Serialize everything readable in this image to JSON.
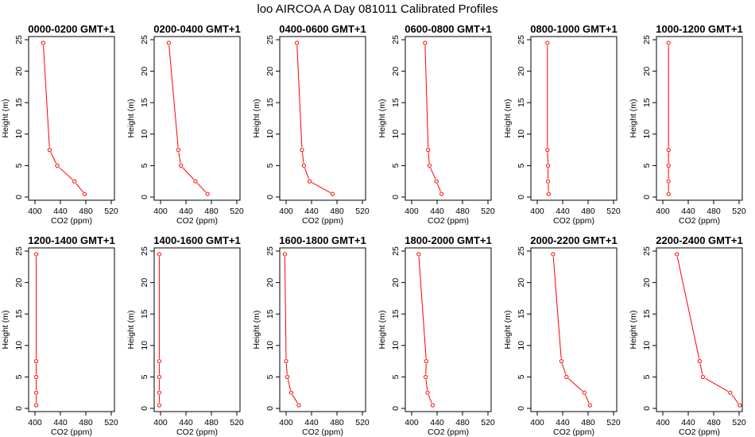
{
  "figure": {
    "title": "loo AIRCOA A  Day 081011  Calibrated Profiles",
    "colors": {
      "line": "#ff0000",
      "points": "#ff0000",
      "axis": "#000000"
    }
  },
  "chart_data": [
    {
      "type": "line",
      "title": "0000-0200 GMT+1",
      "xlabel": "CO2 (ppm)",
      "ylabel": "Height (m)",
      "xlim": [
        390,
        525
      ],
      "ylim": [
        0,
        25
      ],
      "xticks": [
        400,
        440,
        480,
        520
      ],
      "yticks": [
        0,
        5,
        10,
        15,
        20,
        25
      ],
      "series": [
        {
          "x": [
            478,
            462,
            435,
            423,
            413
          ],
          "y": [
            0.5,
            2.5,
            5,
            7.5,
            24.5
          ]
        }
      ]
    },
    {
      "type": "line",
      "title": "0200-0400 GMT+1",
      "xlabel": "CO2 (ppm)",
      "ylabel": "Height (m)",
      "xlim": [
        390,
        525
      ],
      "ylim": [
        0,
        25
      ],
      "xticks": [
        400,
        440,
        480,
        520
      ],
      "yticks": [
        0,
        5,
        10,
        15,
        20,
        25
      ],
      "series": [
        {
          "x": [
            474,
            455,
            432,
            428,
            413
          ],
          "y": [
            0.5,
            2.5,
            5,
            7.5,
            24.5
          ]
        }
      ]
    },
    {
      "type": "line",
      "title": "0400-0600 GMT+1",
      "xlabel": "CO2 (ppm)",
      "ylabel": "Height (m)",
      "xlim": [
        390,
        525
      ],
      "ylim": [
        0,
        25
      ],
      "xticks": [
        400,
        440,
        480,
        520
      ],
      "yticks": [
        0,
        5,
        10,
        15,
        20,
        25
      ],
      "series": [
        {
          "x": [
            473,
            437,
            428,
            425,
            417
          ],
          "y": [
            0.5,
            2.5,
            5,
            7.5,
            24.5
          ]
        }
      ]
    },
    {
      "type": "line",
      "title": "0600-0800 GMT+1",
      "xlabel": "CO2 (ppm)",
      "ylabel": "Height (m)",
      "xlim": [
        390,
        525
      ],
      "ylim": [
        0,
        25
      ],
      "xticks": [
        400,
        440,
        480,
        520
      ],
      "yticks": [
        0,
        5,
        10,
        15,
        20,
        25
      ],
      "series": [
        {
          "x": [
            447,
            439,
            428,
            426,
            421
          ],
          "y": [
            0.5,
            2.5,
            5,
            7.5,
            24.5
          ]
        }
      ]
    },
    {
      "type": "line",
      "title": "0800-1000 GMT+1",
      "xlabel": "CO2 (ppm)",
      "ylabel": "Height (m)",
      "xlim": [
        390,
        525
      ],
      "ylim": [
        0,
        25
      ],
      "xticks": [
        400,
        440,
        480,
        520
      ],
      "yticks": [
        0,
        5,
        10,
        15,
        20,
        25
      ],
      "series": [
        {
          "x": [
            418,
            417,
            417,
            416,
            416
          ],
          "y": [
            0.5,
            2.5,
            5,
            7.5,
            24.5
          ]
        }
      ]
    },
    {
      "type": "line",
      "title": "1000-1200 GMT+1",
      "xlabel": "CO2 (ppm)",
      "ylabel": "Height (m)",
      "xlim": [
        390,
        525
      ],
      "ylim": [
        0,
        25
      ],
      "xticks": [
        400,
        440,
        480,
        520
      ],
      "yticks": [
        0,
        5,
        10,
        15,
        20,
        25
      ],
      "series": [
        {
          "x": [
            409,
            409,
            409,
            409,
            409
          ],
          "y": [
            0.5,
            2.5,
            5,
            7.5,
            24.5
          ]
        }
      ]
    },
    {
      "type": "line",
      "title": "1200-1400 GMT+1",
      "xlabel": "CO2 (ppm)",
      "ylabel": "Height (m)",
      "xlim": [
        390,
        525
      ],
      "ylim": [
        0,
        25
      ],
      "xticks": [
        400,
        440,
        480,
        520
      ],
      "yticks": [
        0,
        5,
        10,
        15,
        20,
        25
      ],
      "series": [
        {
          "x": [
            402,
            402,
            402,
            402,
            402
          ],
          "y": [
            0.5,
            2.5,
            5,
            7.5,
            24.5
          ]
        }
      ]
    },
    {
      "type": "line",
      "title": "1400-1600 GMT+1",
      "xlabel": "CO2 (ppm)",
      "ylabel": "Height (m)",
      "xlim": [
        390,
        525
      ],
      "ylim": [
        0,
        25
      ],
      "xticks": [
        400,
        440,
        480,
        520
      ],
      "yticks": [
        0,
        5,
        10,
        15,
        20,
        25
      ],
      "series": [
        {
          "x": [
            398,
            398,
            398,
            398,
            398
          ],
          "y": [
            0.5,
            2.5,
            5,
            7.5,
            24.5
          ]
        }
      ]
    },
    {
      "type": "line",
      "title": "1600-1800 GMT+1",
      "xlabel": "CO2 (ppm)",
      "ylabel": "Height (m)",
      "xlim": [
        390,
        525
      ],
      "ylim": [
        0,
        25
      ],
      "xticks": [
        400,
        440,
        480,
        520
      ],
      "yticks": [
        0,
        5,
        10,
        15,
        20,
        25
      ],
      "series": [
        {
          "x": [
            420,
            408,
            402,
            400,
            398
          ],
          "y": [
            0.5,
            2.5,
            5,
            7.5,
            24.5
          ]
        }
      ]
    },
    {
      "type": "line",
      "title": "1800-2000 GMT+1",
      "xlabel": "CO2 (ppm)",
      "ylabel": "Height (m)",
      "xlim": [
        390,
        525
      ],
      "ylim": [
        0,
        25
      ],
      "xticks": [
        400,
        440,
        480,
        520
      ],
      "yticks": [
        0,
        5,
        10,
        15,
        20,
        25
      ],
      "series": [
        {
          "x": [
            433,
            425,
            422,
            423,
            411
          ],
          "y": [
            0.5,
            2.5,
            5,
            7.5,
            24.5
          ]
        }
      ]
    },
    {
      "type": "line",
      "title": "2000-2200 GMT+1",
      "xlabel": "CO2 (ppm)",
      "ylabel": "Height (m)",
      "xlim": [
        390,
        525
      ],
      "ylim": [
        0,
        25
      ],
      "xticks": [
        400,
        440,
        480,
        520
      ],
      "yticks": [
        0,
        5,
        10,
        15,
        20,
        25
      ],
      "series": [
        {
          "x": [
            483,
            474,
            446,
            438,
            425
          ],
          "y": [
            0.5,
            2.5,
            5,
            7.5,
            24.5
          ]
        }
      ]
    },
    {
      "type": "line",
      "title": "2200-2400 GMT+1",
      "xlabel": "CO2 (ppm)",
      "ylabel": "Height (m)",
      "xlim": [
        390,
        525
      ],
      "ylim": [
        0,
        25
      ],
      "xticks": [
        400,
        440,
        480,
        520
      ],
      "yticks": [
        0,
        5,
        10,
        15,
        20,
        25
      ],
      "series": [
        {
          "x": [
            521,
            506,
            463,
            458,
            422
          ],
          "y": [
            0.5,
            2.5,
            5,
            7.5,
            24.5
          ]
        }
      ]
    }
  ]
}
